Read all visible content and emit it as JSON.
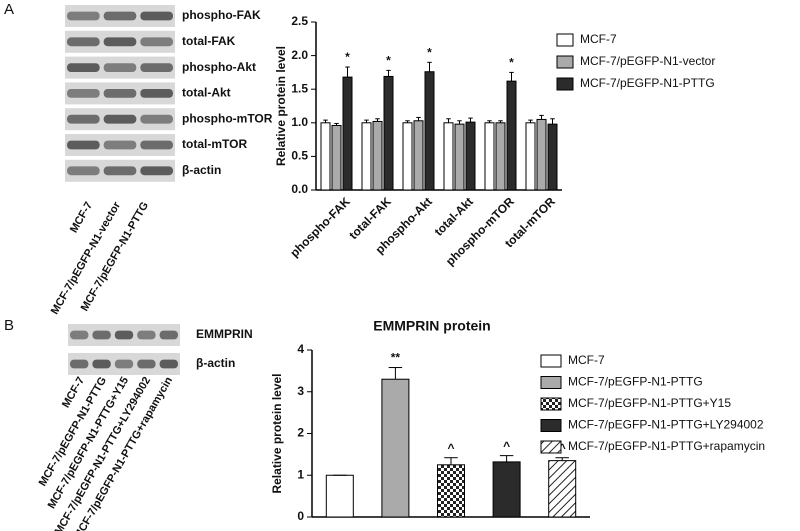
{
  "panels": [
    "A",
    "B"
  ],
  "blots": [
    {
      "bands": [
        "phospho-FAK",
        "total-FAK",
        "phospho-Akt",
        "total-Akt",
        "phospho-mTOR",
        "total-mTOR",
        "β-actin"
      ],
      "lanes": [
        "MCF-7",
        "MCF-7/pEGFP-N1-vector",
        "MCF-7/pEGFP-N1-PTTG"
      ]
    },
    {
      "bands": [
        "EMMPRIN",
        "β-actin"
      ],
      "lanes": [
        "MCF-7",
        "MCF-7/pEGFP-N1-PTTG",
        "MCF-7/pEGFP-N1-PTTG+Y15",
        "MCF-7/pEGFP-N1-PTTG+LY294002",
        "MCF-7/pEGFP-N1-PTTG+rapamycin"
      ]
    }
  ],
  "chart_data": [
    {
      "type": "grouped_bar",
      "y_label": "Relative protein level",
      "categories": [
        "phospho-FAK",
        "total-FAK",
        "phospho-Akt",
        "total-Akt",
        "phospho-mTOR",
        "total-mTOR"
      ],
      "series": [
        {
          "name": "MCF-7",
          "color": "#ffffff",
          "values": [
            1.0,
            1.0,
            1.0,
            1.0,
            1.0,
            1.0
          ],
          "errors": [
            0.04,
            0.04,
            0.03,
            0.06,
            0.03,
            0.04
          ]
        },
        {
          "name": "MCF-7/pEGFP-N1-vector",
          "color": "#aaaaaa",
          "values": [
            0.96,
            1.02,
            1.03,
            0.98,
            1.0,
            1.05
          ],
          "errors": [
            0.03,
            0.04,
            0.05,
            0.05,
            0.03,
            0.06
          ]
        },
        {
          "name": "MCF-7/pEGFP-N1-PTTG",
          "color": "#2b2b2b",
          "values": [
            1.68,
            1.69,
            1.76,
            1.01,
            1.62,
            0.98
          ],
          "errors": [
            0.15,
            0.09,
            0.14,
            0.06,
            0.13,
            0.08
          ],
          "annotations": [
            "*",
            "*",
            "*",
            null,
            "*",
            null
          ]
        }
      ],
      "ylim": [
        0,
        2.5
      ],
      "yticks": [
        {
          "value": 0,
          "label": "0.0"
        },
        0.5,
        {
          "value": 1,
          "label": "1.0"
        },
        1.5,
        {
          "value": 2,
          "label": "2.0"
        },
        2.5
      ]
    },
    {
      "type": "bar",
      "title": "EMMPRIN protein",
      "y_label": "Relative protein level",
      "categories": [
        "MCF-7",
        "MCF-7/pEGFP-N1-PTTG",
        "MCF-7/pEGFP-N1-PTTG+Y15",
        "MCF-7/pEGFP-N1-PTTG+LY294002",
        "MCF-7/pEGFP-N1-PTTG+rapamycin"
      ],
      "values": [
        1.0,
        3.3,
        1.25,
        1.32,
        1.35
      ],
      "errors": [
        0,
        0.28,
        0.17,
        0.15,
        0.07
      ],
      "annotations": [
        null,
        "**",
        "^",
        "^",
        "^"
      ],
      "colors": [
        "#ffffff",
        "#aaaaaa",
        "#ffffff",
        "#2b2b2b",
        "#ffffff"
      ],
      "patterns": [
        null,
        null,
        "checker",
        null,
        "hatch"
      ],
      "ylim": [
        0,
        4
      ],
      "yticks": [
        0,
        1,
        2,
        3,
        4
      ]
    }
  ]
}
